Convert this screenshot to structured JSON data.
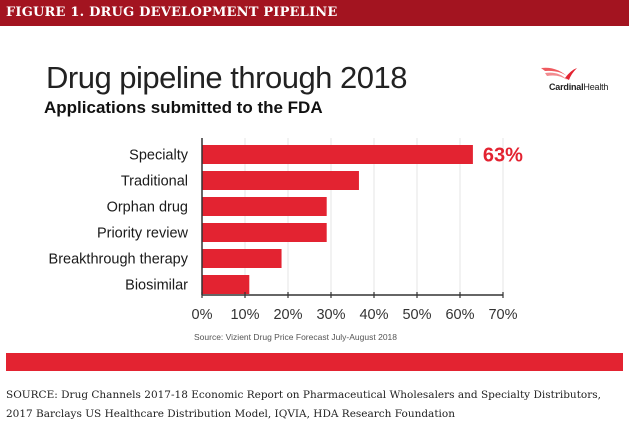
{
  "header": {
    "figure_label": "FIGURE 1. DRUG DEVELOPMENT PIPELINE"
  },
  "logo": {
    "brand_bold": "Cardinal",
    "brand_light": "Health"
  },
  "colors": {
    "header_bg": "#a31420",
    "bar": "#e32331",
    "accent_text": "#e32331"
  },
  "chart_data": {
    "type": "bar",
    "orientation": "horizontal",
    "title": "Drug pipeline through 2018",
    "subtitle": "Applications submitted to the FDA",
    "categories": [
      "Specialty",
      "Traditional",
      "Orphan drug",
      "Priority review",
      "Breakthrough therapy",
      "Biosimilar"
    ],
    "values": [
      63,
      36.5,
      29,
      29,
      18.5,
      11
    ],
    "value_unit": "%",
    "data_labels": [
      {
        "category": "Specialty",
        "text": "63%"
      }
    ],
    "xlabel": "",
    "ylabel": "",
    "xlim": [
      0,
      70
    ],
    "xticks": [
      "0%",
      "10%",
      "20%",
      "30%",
      "40%",
      "50%",
      "60%",
      "70%"
    ],
    "xtick_values": [
      0,
      10,
      20,
      30,
      40,
      50,
      60,
      70
    ],
    "grid": "vertical",
    "legend": "none",
    "source": "Source: Vizient Drug Price Forecast July-August 2018"
  },
  "footer": {
    "source": "SOURCE: Drug Channels 2017-18 Economic Report on Pharmaceutical Wholesalers and Specialty Distributors, 2017 Barclays US Healthcare Distribution Model, IQVIA, HDA Research Foundation"
  }
}
